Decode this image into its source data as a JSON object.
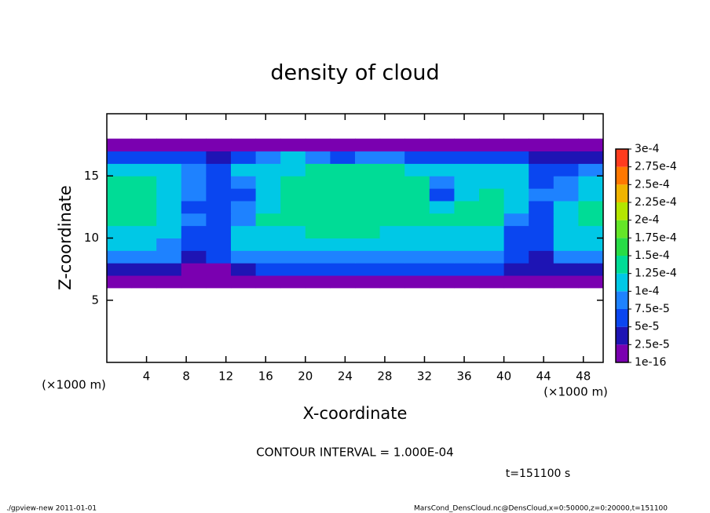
{
  "chart_data": {
    "type": "heatmap",
    "title": "density of cloud",
    "x_label": "X-coordinate",
    "y_label": "Z-coordinate",
    "x_unit": "(×1000 m)",
    "x_unit_right": "(×1000 m)",
    "contour_note": "CONTOUR INTERVAL = 1.000E-04",
    "time_label": "t=151100 s",
    "footer_left": "./gpview-new  2011-01-01",
    "footer_right": "MarsCond_DensCloud.nc@DensCloud,x=0:50000,z=0:20000,t=151100",
    "xlim": [
      0,
      50
    ],
    "ylim": [
      0,
      20
    ],
    "xticks": [
      4,
      8,
      12,
      16,
      20,
      24,
      28,
      32,
      36,
      40,
      44,
      48
    ],
    "yticks": [
      5,
      10,
      15
    ],
    "x": [
      1.25,
      3.75,
      6.25,
      8.75,
      11.25,
      13.75,
      16.25,
      18.75,
      21.25,
      23.75,
      26.25,
      28.75,
      31.25,
      33.75,
      36.25,
      38.75,
      41.25,
      43.75,
      46.25,
      48.75
    ],
    "y": [
      6.5,
      7.5,
      8.5,
      9.5,
      10.5,
      11.5,
      12.5,
      13.5,
      14.5,
      15.5,
      16.5,
      17.5
    ],
    "values": [
      [
        2e-05,
        2e-05,
        2e-05,
        1.5e-05,
        1.5e-05,
        2e-05,
        2e-05,
        2e-05,
        2e-05,
        2e-05,
        2e-05,
        2e-05,
        2e-05,
        2e-05,
        2e-05,
        2e-05,
        2e-05,
        2e-05,
        2e-05,
        2e-05
      ],
      [
        4e-05,
        4e-05,
        4e-05,
        2e-05,
        1e-05,
        4e-05,
        5e-05,
        5e-05,
        5e-05,
        5e-05,
        5e-05,
        5e-05,
        5e-05,
        5e-05,
        5e-05,
        5e-05,
        4e-05,
        4e-05,
        4e-05,
        4e-05
      ],
      [
        9e-05,
        9e-05,
        8e-05,
        3e-05,
        5e-05,
        8e-05,
        9e-05,
        9e-05,
        9e-05,
        9e-05,
        9e-05,
        9e-05,
        9e-05,
        9e-05,
        9e-05,
        9e-05,
        6e-05,
        4e-05,
        8e-05,
        9e-05
      ],
      [
        0.00011,
        0.0001,
        9e-05,
        6e-05,
        6e-05,
        0.0001,
        0.00011,
        0.00011,
        0.00011,
        0.00011,
        0.00011,
        0.00011,
        0.00011,
        0.00011,
        0.0001,
        0.0001,
        5e-05,
        6e-05,
        0.0001,
        0.00011
      ],
      [
        0.00012,
        0.00012,
        0.0001,
        7e-05,
        6e-05,
        0.00011,
        0.00012,
        0.00012,
        0.00013,
        0.00013,
        0.00013,
        0.00012,
        0.00012,
        0.00012,
        0.00012,
        0.00012,
        6e-05,
        7e-05,
        0.00011,
        0.00012
      ],
      [
        0.00013,
        0.00013,
        0.00011,
        8e-05,
        6e-05,
        9e-05,
        0.00013,
        0.00013,
        0.00013,
        0.00014,
        0.00014,
        0.00013,
        0.00013,
        0.00013,
        0.00013,
        0.00013,
        9e-05,
        6e-05,
        0.00011,
        0.00013
      ],
      [
        0.00013,
        0.00013,
        0.00012,
        7e-05,
        5e-05,
        8e-05,
        0.00012,
        0.00013,
        0.00014,
        0.00014,
        0.00014,
        0.00014,
        0.00013,
        0.00012,
        0.00013,
        0.00013,
        0.00012,
        7e-05,
        0.0001,
        0.00013
      ],
      [
        0.00013,
        0.00013,
        0.00012,
        8e-05,
        6e-05,
        7e-05,
        0.00011,
        0.00013,
        0.00014,
        0.00014,
        0.00014,
        0.00014,
        0.00013,
        7e-05,
        0.00012,
        0.00013,
        0.00012,
        8e-05,
        9e-05,
        0.00012
      ],
      [
        0.00013,
        0.00013,
        0.00012,
        9e-05,
        6e-05,
        9e-05,
        0.00012,
        0.00013,
        0.00013,
        0.00014,
        0.00014,
        0.00014,
        0.00013,
        8e-05,
        0.00011,
        0.00012,
        0.00011,
        7e-05,
        8e-05,
        0.00011
      ],
      [
        0.00012,
        0.00011,
        0.0001,
        9e-05,
        7e-05,
        0.0001,
        0.00011,
        0.00012,
        0.00013,
        0.00013,
        0.00013,
        0.00013,
        0.00012,
        0.0001,
        0.0001,
        0.00011,
        0.0001,
        7e-05,
        7e-05,
        8e-05
      ],
      [
        7e-05,
        6e-05,
        6e-05,
        5e-05,
        4e-05,
        6e-05,
        9e-05,
        0.0001,
        8e-05,
        7e-05,
        8e-05,
        8e-05,
        7e-05,
        6e-05,
        7e-05,
        7e-05,
        6e-05,
        4e-05,
        3e-05,
        4e-05
      ],
      [
        1e-05,
        1e-05,
        1e-05,
        1e-05,
        1e-05,
        1e-05,
        1e-05,
        1e-05,
        1e-05,
        1e-05,
        1e-05,
        1e-05,
        1e-05,
        1e-05,
        1e-05,
        1e-05,
        1e-05,
        1e-05,
        1e-05,
        1e-05
      ]
    ],
    "levels": [
      {
        "value": 1e-16,
        "label": "1e-16"
      },
      {
        "value": 2.5e-05,
        "label": "2.5e-5"
      },
      {
        "value": 5e-05,
        "label": "5e-5"
      },
      {
        "value": 7.5e-05,
        "label": "7.5e-5"
      },
      {
        "value": 0.0001,
        "label": "1e-4"
      },
      {
        "value": 0.000125,
        "label": "1.25e-4"
      },
      {
        "value": 0.00015,
        "label": "1.5e-4"
      },
      {
        "value": 0.000175,
        "label": "1.75e-4"
      },
      {
        "value": 0.0002,
        "label": "2e-4"
      },
      {
        "value": 0.000225,
        "label": "2.25e-4"
      },
      {
        "value": 0.00025,
        "label": "2.5e-4"
      },
      {
        "value": 0.000275,
        "label": "2.75e-4"
      },
      {
        "value": 0.0003,
        "label": "3e-4"
      }
    ],
    "colors": [
      "#7a00b0",
      "#1e14b4",
      "#0a46f0",
      "#1e82ff",
      "#00c8e6",
      "#00dc96",
      "#28dc46",
      "#64e628",
      "#b4e600",
      "#f0b400",
      "#ff7800",
      "#ff3c1e",
      "#ff8c8c"
    ]
  }
}
